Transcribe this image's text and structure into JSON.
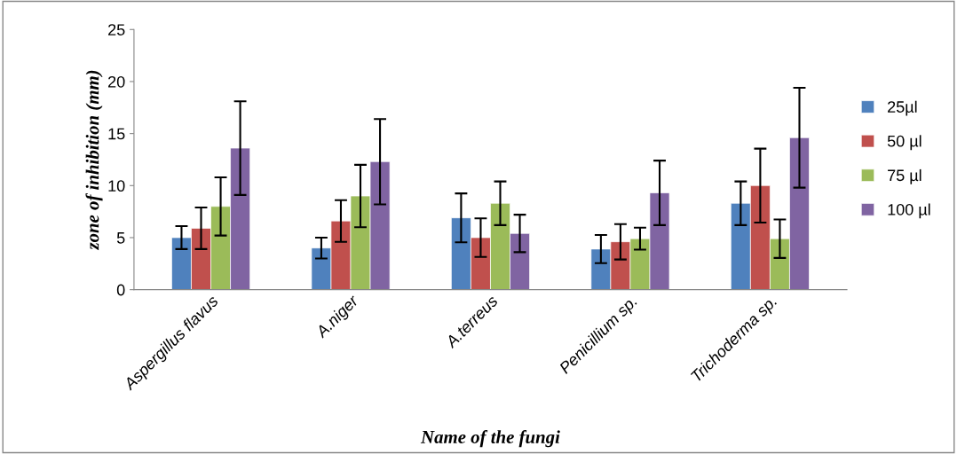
{
  "chart_data": {
    "type": "bar",
    "xlabel": "Name of the fungi",
    "ylabel": "zone of inhibition (mm)",
    "categories": [
      "Aspergillus flavus",
      "A.niger",
      "A.terreus",
      "Penicillium sp.",
      "Trichoderma sp."
    ],
    "series": [
      {
        "name": "25µl",
        "color": "#4f81bd",
        "values": [
          5.0,
          4.0,
          6.9,
          3.9,
          8.3
        ],
        "errors": [
          1.1,
          1.0,
          2.35,
          1.35,
          2.1
        ]
      },
      {
        "name": "50 µl",
        "color": "#c0504d",
        "values": [
          5.9,
          6.6,
          5.0,
          4.6,
          10.0
        ],
        "errors": [
          2.0,
          2.0,
          1.85,
          1.7,
          3.55
        ]
      },
      {
        "name": "75 µl",
        "color": "#9bbb59",
        "values": [
          8.0,
          9.0,
          8.3,
          4.9,
          4.9
        ],
        "errors": [
          2.8,
          3.0,
          2.1,
          1.05,
          1.85
        ]
      },
      {
        "name": "100 µl",
        "color": "#8064a2",
        "values": [
          13.6,
          12.3,
          5.4,
          9.3,
          14.6
        ],
        "errors": [
          4.5,
          4.1,
          1.8,
          3.1,
          4.8
        ]
      }
    ],
    "ylim": [
      0,
      25
    ],
    "yticks": [
      0,
      5,
      10,
      15,
      20,
      25
    ],
    "grid": false,
    "legend": "right"
  }
}
